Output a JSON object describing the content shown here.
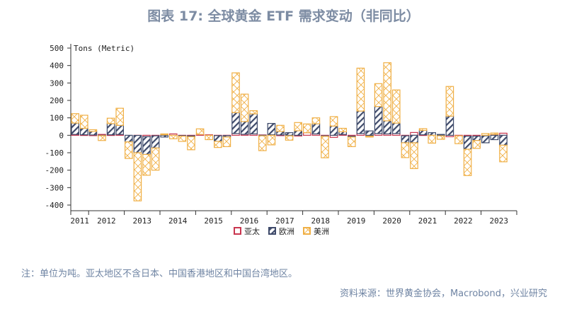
{
  "title": "图表 17: 全球黄金 ETF 需求变动（非同比）",
  "note": "注：单位为吨。亚太地区不含日本、中国香港地区和中国台湾地区。",
  "source": "资料来源：世界黄金协会，Macrobond，兴业研究",
  "chart_data": {
    "type": "bar",
    "stacked": true,
    "ylabel": "Tons (Metric)",
    "ylim": [
      -400,
      500
    ],
    "yticks": [
      500,
      400,
      300,
      200,
      100,
      0,
      -100,
      -200,
      -300,
      -400
    ],
    "year_labels": [
      "2011",
      "2012",
      "2013",
      "2014",
      "2015",
      "2016",
      "2017",
      "2018",
      "2019",
      "2020",
      "2021",
      "2022",
      "2023"
    ],
    "categories": [
      "2011Q3",
      "2011Q4",
      "2012Q1",
      "2012Q2",
      "2012Q3",
      "2012Q4",
      "2013Q1",
      "2013Q2",
      "2013Q3",
      "2013Q4",
      "2014Q1",
      "2014Q2",
      "2014Q3",
      "2014Q4",
      "2015Q1",
      "2015Q2",
      "2015Q3",
      "2015Q4",
      "2016Q1",
      "2016Q2",
      "2016Q3",
      "2016Q4",
      "2017Q1",
      "2017Q2",
      "2017Q3",
      "2017Q4",
      "2018Q1",
      "2018Q2",
      "2018Q3",
      "2018Q4",
      "2019Q1",
      "2019Q2",
      "2019Q3",
      "2019Q4",
      "2020Q1",
      "2020Q2",
      "2020Q3",
      "2020Q4",
      "2021Q1",
      "2021Q2",
      "2021Q3",
      "2021Q4",
      "2022Q1",
      "2022Q2",
      "2022Q3",
      "2022Q4",
      "2023Q1",
      "2023Q2",
      "2023Q3"
    ],
    "legend_position": "bottom",
    "grid": false,
    "series": [
      {
        "name": "亚太",
        "color": "#c9364f",
        "pattern": "outline",
        "values": [
          5,
          3,
          2,
          5,
          3,
          5,
          0,
          -1,
          -8,
          -3,
          3,
          8,
          -2,
          -3,
          5,
          3,
          -2,
          -2,
          10,
          6,
          8,
          2,
          3,
          2,
          -3,
          -3,
          15,
          8,
          -3,
          -12,
          5,
          -5,
          10,
          -5,
          10,
          8,
          10,
          -3,
          16,
          3,
          0,
          -3,
          -8,
          -3,
          -5,
          -5,
          -3,
          5,
          12
        ]
      },
      {
        "name": "欧洲",
        "color": "#3e4a6a",
        "pattern": "diagonal",
        "values": [
          65,
          37,
          20,
          -2,
          64,
          52,
          -38,
          -99,
          -102,
          -70,
          -10,
          0,
          -3,
          -5,
          0,
          0,
          -33,
          -8,
          120,
          73,
          115,
          -3,
          65,
          20,
          15,
          26,
          0,
          58,
          -3,
          53,
          15,
          -5,
          129,
          25,
          155,
          75,
          60,
          -40,
          -43,
          25,
          15,
          5,
          110,
          0,
          -75,
          -25,
          -40,
          -25,
          -57
        ]
      },
      {
        "name": "美洲",
        "color": "#f0b046",
        "pattern": "crosshatch",
        "values": [
          54,
          75,
          10,
          -28,
          31,
          98,
          -95,
          -276,
          -119,
          -127,
          5,
          -20,
          -30,
          -75,
          32,
          -25,
          -35,
          -55,
          228,
          157,
          18,
          -85,
          -55,
          35,
          -25,
          47,
          50,
          34,
          -123,
          54,
          20,
          -55,
          246,
          -5,
          131,
          333,
          190,
          -85,
          -148,
          10,
          -45,
          -20,
          170,
          -45,
          -151,
          -45,
          10,
          8,
          -95
        ]
      }
    ]
  }
}
